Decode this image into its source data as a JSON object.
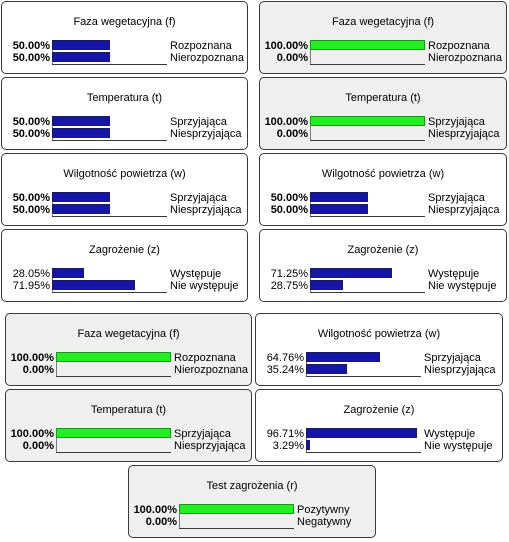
{
  "colors": {
    "bar_default": "#1515a8",
    "bar_observed": "#22ee22",
    "panel_observed": "#efefef",
    "panel_default": "#ffffff"
  },
  "nodes": [
    {
      "title": "Faza wegetacyjna (f)",
      "observed": false,
      "bold": true,
      "states": [
        {
          "pct": "50.00%",
          "value": 0.5,
          "label": "Rozpoznana"
        },
        {
          "pct": "50.00%",
          "value": 0.5,
          "label": "Nierozpoznana"
        }
      ]
    },
    {
      "title": "Faza wegetacyjna (f)",
      "observed": true,
      "bold": true,
      "states": [
        {
          "pct": "100.00%",
          "value": 1.0,
          "label": "Rozpoznana"
        },
        {
          "pct": "0.00%",
          "value": 0.0,
          "label": "Nierozpoznana"
        }
      ]
    },
    {
      "title": "Temperatura (t)",
      "observed": false,
      "bold": true,
      "states": [
        {
          "pct": "50.00%",
          "value": 0.5,
          "label": "Sprzyjająca"
        },
        {
          "pct": "50.00%",
          "value": 0.5,
          "label": "Niesprzyjająca"
        }
      ]
    },
    {
      "title": "Temperatura (t)",
      "observed": true,
      "bold": true,
      "states": [
        {
          "pct": "100.00%",
          "value": 1.0,
          "label": "Sprzyjająca"
        },
        {
          "pct": "0.00%",
          "value": 0.0,
          "label": "Niesprzyjająca"
        }
      ]
    },
    {
      "title": "Wilgotność powietrza (w)",
      "observed": false,
      "bold": true,
      "states": [
        {
          "pct": "50.00%",
          "value": 0.5,
          "label": "Sprzyjająca"
        },
        {
          "pct": "50.00%",
          "value": 0.5,
          "label": "Niesprzyjająca"
        }
      ]
    },
    {
      "title": "Wilgotność powietrza (w)",
      "observed": false,
      "bold": true,
      "states": [
        {
          "pct": "50.00%",
          "value": 0.5,
          "label": "Sprzyjająca"
        },
        {
          "pct": "50.00%",
          "value": 0.5,
          "label": "Niesprzyjająca"
        }
      ]
    },
    {
      "title": "Zagrożenie (z)",
      "observed": false,
      "bold": false,
      "states": [
        {
          "pct": "28.05%",
          "value": 0.2805,
          "label": "Występuje"
        },
        {
          "pct": "71.95%",
          "value": 0.7195,
          "label": "Nie występuje"
        }
      ]
    },
    {
      "title": "Zagrożenie (z)",
      "observed": false,
      "bold": false,
      "states": [
        {
          "pct": "71.25%",
          "value": 0.7125,
          "label": "Występuje"
        },
        {
          "pct": "28.75%",
          "value": 0.2875,
          "label": "Nie występuje"
        }
      ]
    },
    {
      "title": "Faza wegetacyjna (f)",
      "observed": true,
      "bold": true,
      "states": [
        {
          "pct": "100.00%",
          "value": 1.0,
          "label": "Rozpoznana"
        },
        {
          "pct": "0.00%",
          "value": 0.0,
          "label": "Nierozpoznana"
        }
      ]
    },
    {
      "title": "Wilgotność powietrza (w)",
      "observed": false,
      "bold": false,
      "states": [
        {
          "pct": "64.76%",
          "value": 0.6476,
          "label": "Sprzyjająca"
        },
        {
          "pct": "35.24%",
          "value": 0.3524,
          "label": "Niesprzyjająca"
        }
      ]
    },
    {
      "title": "Temperatura (t)",
      "observed": true,
      "bold": true,
      "states": [
        {
          "pct": "100.00%",
          "value": 1.0,
          "label": "Sprzyjająca"
        },
        {
          "pct": "0.00%",
          "value": 0.0,
          "label": "Niesprzyjająca"
        }
      ]
    },
    {
      "title": "Zagrożenie (z)",
      "observed": false,
      "bold": false,
      "states": [
        {
          "pct": "96.71%",
          "value": 0.9671,
          "label": "Występuje"
        },
        {
          "pct": "3.29%",
          "value": 0.0329,
          "label": "Nie występuje"
        }
      ]
    },
    {
      "title": "Test zagrożenia (r)",
      "observed": true,
      "bold": true,
      "states": [
        {
          "pct": "100.00%",
          "value": 1.0,
          "label": "Pozytywny"
        },
        {
          "pct": "0.00%",
          "value": 0.0,
          "label": "Negatywny"
        }
      ]
    }
  ]
}
